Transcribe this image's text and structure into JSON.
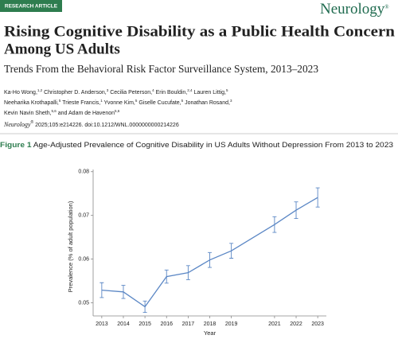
{
  "header": {
    "badge": "RESEARCH ARTICLE",
    "journal_logo": "Neurology",
    "logo_mark": "®",
    "title": [
      "Rising Cognitive Disability as a Public Health Concern",
      "Among US Adults"
    ],
    "subtitle": "Trends From the Behavioral Risk Factor Surveillance System, 2013–2023",
    "authors": [
      [
        {
          "name": "Ka-Ho Wong,",
          "sup": "1,2"
        },
        {
          "name": "Christopher D. Anderson,",
          "sup": "3"
        },
        {
          "name": "Cecilia Peterson,",
          "sup": "4"
        },
        {
          "name": "Erin Bouldin,",
          "sup": "2,4"
        },
        {
          "name": "Lauren Littig,",
          "sup": "5"
        }
      ],
      [
        {
          "name": "Neeharika Krothapalli,",
          "sup": "5"
        },
        {
          "name": "Trieste Francis,",
          "sup": "1"
        },
        {
          "name": "Yvonne Kim,",
          "sup": "5"
        },
        {
          "name": "Giselle Cucufate,",
          "sup": "5"
        },
        {
          "name": "Jonathan Rosand,",
          "sup": "3"
        }
      ],
      [
        {
          "name": "Kevin Navin Sheth,",
          "sup": "5,6"
        },
        {
          "prefix": "and",
          "name": "Adam de Havenon",
          "sup": "5,6"
        }
      ]
    ],
    "citation": {
      "journal": "Neurology",
      "mark": "®",
      "text": " 2025;105:e214226. doi:10.1212/WNL.0000000000214226"
    }
  },
  "figure": {
    "label": "Figure 1",
    "caption": " Age-Adjusted Prevalence of Cognitive Disability in US Adults Without Depression From 2013 to 2023"
  },
  "chart_data": {
    "type": "line",
    "xlabel": "Year",
    "ylabel": "Prevalence (% of adult population)",
    "x": [
      2013,
      2014,
      2015,
      2016,
      2017,
      2018,
      2019,
      2021,
      2022,
      2023
    ],
    "series": [
      {
        "color": "#5b87c5",
        "values": [
          0.0529,
          0.0525,
          0.0491,
          0.056,
          0.0569,
          0.0598,
          0.0619,
          0.0679,
          0.0712,
          0.0741
        ],
        "errors": [
          0.0017,
          0.0015,
          0.0013,
          0.0015,
          0.0016,
          0.0017,
          0.0017,
          0.0018,
          0.0019,
          0.0022
        ]
      }
    ],
    "xlim": [
      2012.6,
      2023.4
    ],
    "ylim": [
      0.047,
      0.0805
    ],
    "xticks": [
      2013,
      2014,
      2015,
      2016,
      2017,
      2018,
      2019,
      2021,
      2022,
      2023
    ],
    "yticks": [
      0.05,
      0.06,
      0.07,
      0.08
    ]
  }
}
